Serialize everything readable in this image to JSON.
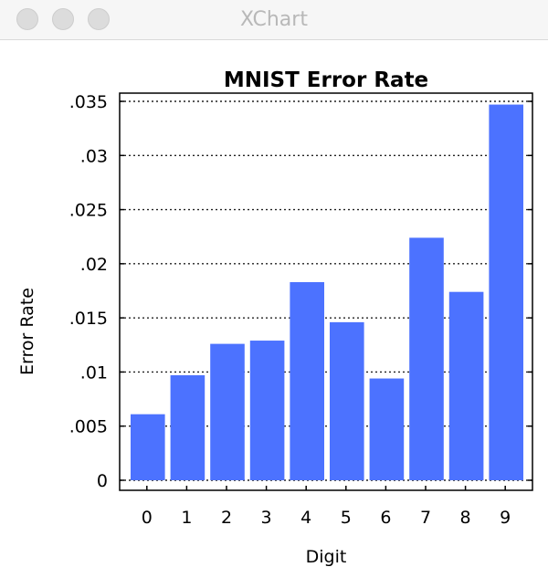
{
  "window": {
    "title": "XChart"
  },
  "chart_data": {
    "type": "bar",
    "title": "MNIST Error Rate",
    "xlabel": "Digit",
    "ylabel": "Error Rate",
    "categories": [
      "0",
      "1",
      "2",
      "3",
      "4",
      "5",
      "6",
      "7",
      "8",
      "9"
    ],
    "values": [
      0.0061,
      0.0097,
      0.0126,
      0.0129,
      0.0183,
      0.0146,
      0.0094,
      0.0224,
      0.0174,
      0.0347
    ],
    "ylim": [
      0,
      0.035
    ],
    "y_ticks": [
      0,
      0.005,
      0.01,
      0.015,
      0.02,
      0.025,
      0.03,
      0.035
    ],
    "y_tick_labels": [
      "0",
      ".005",
      ".01",
      ".015",
      ".02",
      ".025",
      ".03",
      ".035"
    ],
    "grid": true,
    "legend": false,
    "bar_color": "#4c72ff"
  }
}
